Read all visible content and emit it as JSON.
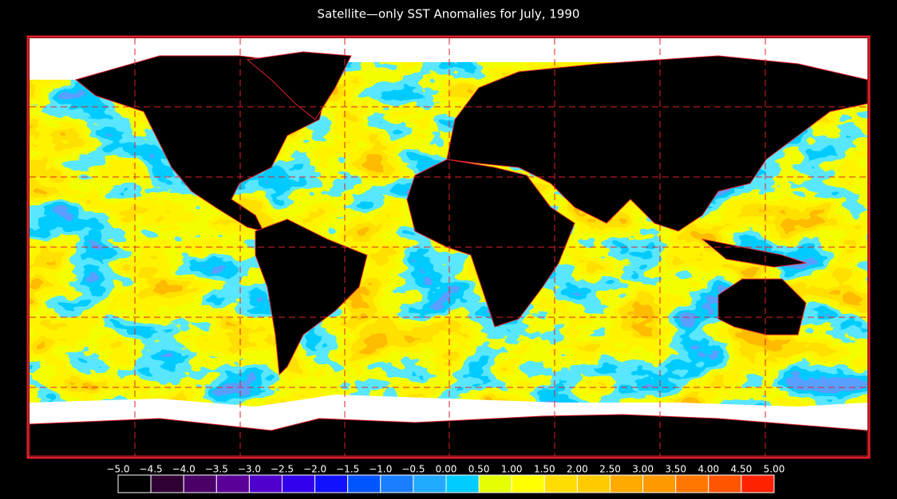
{
  "title": "Satellite—only SST Anomalies for July, 1990",
  "colorbar": {
    "ticks": [
      {
        "value": -5.0,
        "label": "−5.0"
      },
      {
        "value": -4.5,
        "label": "−4.5"
      },
      {
        "value": -4.0,
        "label": "−4.0"
      },
      {
        "value": -3.5,
        "label": "−3.5"
      },
      {
        "value": -3.0,
        "label": "−3.0"
      },
      {
        "value": -2.5,
        "label": "−2.5"
      },
      {
        "value": -2.0,
        "label": "−2.0"
      },
      {
        "value": -1.5,
        "label": "−1.5"
      },
      {
        "value": -1.0,
        "label": "−1.0"
      },
      {
        "value": -0.5,
        "label": "−0.5"
      },
      {
        "value": 0,
        "label": "0.00"
      },
      {
        "value": 0.5,
        "label": "0.50"
      },
      {
        "value": 1.0,
        "label": "1.00"
      },
      {
        "value": 1.5,
        "label": "1.50"
      },
      {
        "value": 2.0,
        "label": "2.00"
      },
      {
        "value": 2.5,
        "label": "2.50"
      },
      {
        "value": 3.0,
        "label": "3.00"
      },
      {
        "value": 3.5,
        "label": "3.50"
      },
      {
        "value": 4.0,
        "label": "4.00"
      },
      {
        "value": 4.5,
        "label": "4.50"
      },
      {
        "value": 5.0,
        "label": "5.00"
      }
    ],
    "colors": [
      "#000000",
      "#2e0033",
      "#4a0066",
      "#5a0099",
      "#5000cc",
      "#3300ee",
      "#1111ff",
      "#0055ff",
      "#1a7fff",
      "#22aaff",
      "#00ccff",
      "#e5ff00",
      "#ffff00",
      "#ffdd00",
      "#ffcc00",
      "#ffaa00",
      "#ff9900",
      "#ff7700",
      "#ff5500",
      "#ff2200"
    ]
  }
}
